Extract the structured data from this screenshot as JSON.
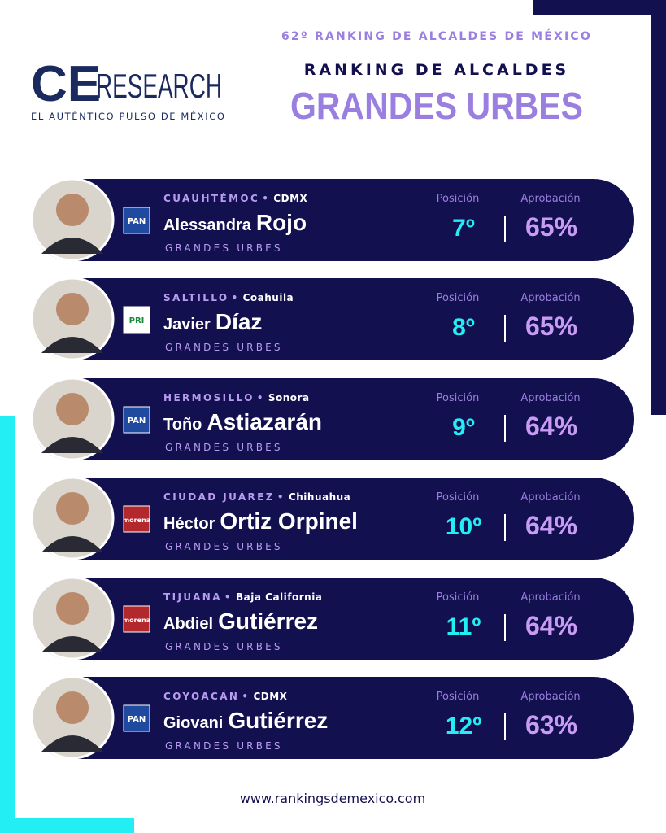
{
  "header": {
    "logo_bold": "CE",
    "logo_light": "RESEARCH",
    "tagline": "EL AUTÉNTICO PULSO DE MÉXICO",
    "edition": "62º RANKING DE ALCALDES DE MÉXICO",
    "subtitle": "RANKING DE ALCALDES",
    "title": "GRANDES URBES"
  },
  "cards": [
    {
      "city": "CUAUHTÉMOC",
      "state": "CDMX",
      "first": "Alessandra",
      "last": "Rojo",
      "party": "PAN",
      "category": "GRANDES URBES",
      "position_label": "Posición",
      "position": "7º",
      "approval_label": "Aprobación",
      "approval": "65%"
    },
    {
      "city": "SALTILLO",
      "state": "Coahuila",
      "first": "Javier",
      "last": "Díaz",
      "party": "PRI",
      "category": "GRANDES URBES",
      "position_label": "Posición",
      "position": "8º",
      "approval_label": "Aprobación",
      "approval": "65%"
    },
    {
      "city": "HERMOSILLO",
      "state": "Sonora",
      "first": "Toño",
      "last": "Astiazarán",
      "party": "PAN",
      "category": "GRANDES URBES",
      "position_label": "Posición",
      "position": "9º",
      "approval_label": "Aprobación",
      "approval": "64%"
    },
    {
      "city": "CIUDAD JUÁREZ",
      "state": "Chihuahua",
      "first": "Héctor",
      "last": "Ortiz Orpinel",
      "party": "morena",
      "category": "GRANDES URBES",
      "position_label": "Posición",
      "position": "10º",
      "approval_label": "Aprobación",
      "approval": "64%"
    },
    {
      "city": "TIJUANA",
      "state": "Baja California",
      "first": "Abdiel",
      "last": "Gutiérrez",
      "party": "morena",
      "category": "GRANDES URBES",
      "position_label": "Posición",
      "position": "11º",
      "approval_label": "Aprobación",
      "approval": "64%"
    },
    {
      "city": "COYOACÁN",
      "state": "CDMX",
      "first": "Giovani",
      "last": "Gutiérrez",
      "party": "PAN",
      "category": "GRANDES URBES",
      "position_label": "Posición",
      "position": "12º",
      "approval_label": "Aprobación",
      "approval": "63%"
    }
  ],
  "footer": {
    "url": "www.rankingsdemexico.com"
  }
}
